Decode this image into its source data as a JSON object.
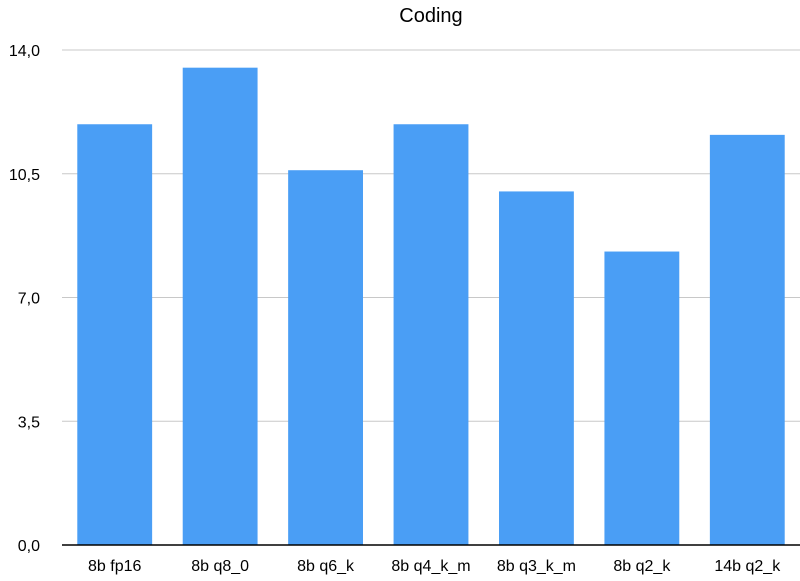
{
  "chart_data": {
    "type": "bar",
    "title": "Coding",
    "xlabel": "",
    "ylabel": "",
    "categories": [
      "8b fp16",
      "8b q8_0",
      "8b q6_k",
      "8b q4_k_m",
      "8b q3_k_m",
      "8b q2_k",
      "14b q2_k"
    ],
    "values": [
      11.9,
      13.5,
      10.6,
      11.9,
      10.0,
      8.3,
      11.6
    ],
    "ylim": [
      0,
      14
    ],
    "yticks": [
      0,
      3.5,
      7,
      10.5,
      14
    ],
    "ytick_labels": [
      "0,0",
      "3,5",
      "7,0",
      "10,5",
      "14,0"
    ],
    "grid": true,
    "legend": "none",
    "bar_color": "#4A9EF5"
  }
}
